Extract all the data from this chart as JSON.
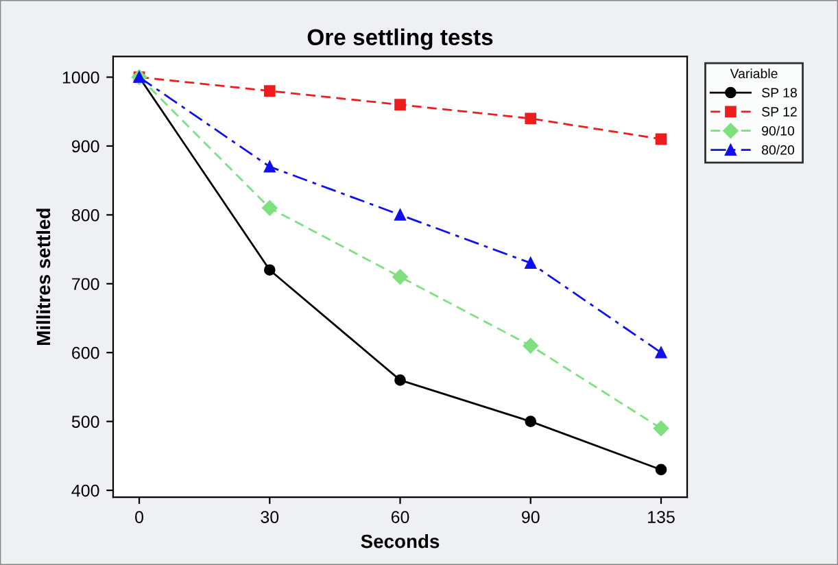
{
  "chart_data": {
    "type": "line",
    "title": "Ore settling tests",
    "xlabel": "Seconds",
    "ylabel": "Millitres settled",
    "legend_title": "Variable",
    "legend": "right",
    "categories": [
      "0",
      "30",
      "60",
      "90",
      "135"
    ],
    "series": [
      {
        "name": "SP 18",
        "color": "#000000",
        "marker": "circle",
        "line_style": "solid",
        "values": [
          1000,
          720,
          560,
          500,
          430
        ]
      },
      {
        "name": "SP 12",
        "color": "#ee1c1c",
        "marker": "square",
        "line_style": "dashed",
        "values": [
          1000,
          980,
          960,
          940,
          910
        ]
      },
      {
        "name": "90/10",
        "color": "#7ee07e",
        "marker": "diamond",
        "line_style": "dashed",
        "values": [
          1000,
          810,
          710,
          610,
          490
        ]
      },
      {
        "name": "80/20",
        "color": "#1010ee",
        "marker": "triangle",
        "line_style": "dashdot",
        "values": [
          1000,
          870,
          800,
          730,
          600
        ]
      }
    ],
    "ylim": [
      390,
      1030
    ],
    "yticks": [
      400,
      500,
      600,
      700,
      800,
      900,
      1000
    ],
    "grid": false
  }
}
